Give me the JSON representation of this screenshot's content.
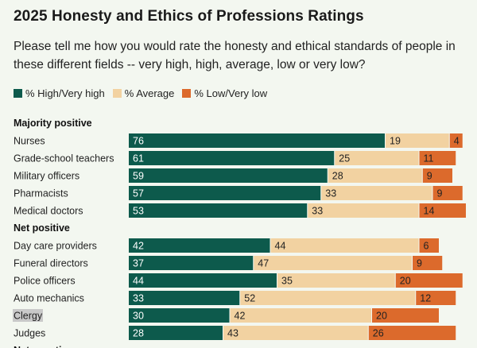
{
  "title": "2025 Honesty and Ethics of Professions Ratings",
  "subtitle": "Please tell me how you would rate the honesty and ethical standards of people in these different fields -- very high, high, average, low or very low?",
  "colors": {
    "high": "#0d5a4c",
    "average": "#f2d2a1",
    "low": "#dc6a2c",
    "highlight": "#c9c9c9"
  },
  "chart_data": {
    "type": "bar",
    "stacked": true,
    "orientation": "horizontal",
    "title": "2025 Honesty and Ethics of Professions Ratings",
    "legend": [
      "% High/Very high",
      "% Average",
      "% Low/Very low"
    ],
    "groups": [
      {
        "name": "Majority positive",
        "rows": [
          {
            "label": "Nurses",
            "values": [
              76,
              19,
              4
            ]
          },
          {
            "label": "Grade-school teachers",
            "values": [
              61,
              25,
              11
            ]
          },
          {
            "label": "Military officers",
            "values": [
              59,
              28,
              9
            ]
          },
          {
            "label": "Pharmacists",
            "values": [
              57,
              33,
              9
            ]
          },
          {
            "label": "Medical doctors",
            "values": [
              53,
              33,
              14
            ]
          }
        ]
      },
      {
        "name": "Net positive",
        "rows": [
          {
            "label": "Day care providers",
            "values": [
              42,
              44,
              6
            ]
          },
          {
            "label": "Funeral directors",
            "values": [
              37,
              47,
              9
            ]
          },
          {
            "label": "Police officers",
            "values": [
              44,
              35,
              20
            ]
          },
          {
            "label": "Auto mechanics",
            "values": [
              33,
              52,
              12
            ]
          },
          {
            "label": "Clergy",
            "values": [
              30,
              42,
              20
            ],
            "highlighted": true
          },
          {
            "label": "Judges",
            "values": [
              28,
              43,
              26
            ]
          }
        ]
      },
      {
        "name": "Net negative",
        "rows": []
      }
    ]
  }
}
